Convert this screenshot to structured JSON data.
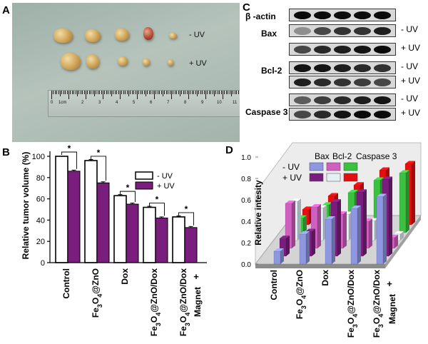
{
  "panels": {
    "a": {
      "letter": "A",
      "row_labels": [
        "- UV",
        "+ UV"
      ],
      "ruler": {
        "unit": "1cm",
        "numbers": [
          "0",
          "2",
          "3",
          "4",
          "5",
          "6",
          "7",
          "8",
          "9",
          "10",
          "11"
        ]
      }
    },
    "b": {
      "letter": "B"
    },
    "c": {
      "letter": "C",
      "proteins": [
        "β -actin",
        "Bax",
        "Bcl-2",
        "Caspase 3"
      ],
      "uv_labels": [
        "- UV",
        "+ UV"
      ]
    },
    "d": {
      "letter": "D"
    }
  },
  "chart_data": [
    {
      "type": "bar",
      "title": "",
      "xlabel": "",
      "ylabel": "Relative tumor volume (%)",
      "ylim": [
        0,
        100
      ],
      "yticks": [
        "0",
        "20",
        "40",
        "60",
        "80",
        "100"
      ],
      "categories": [
        "Control",
        "Fe3O4@ZnO",
        "Dox",
        "Fe3O4@ZnO/Dox",
        "Fe3O4@ZnO/Dox + Magnet"
      ],
      "category_parts": [
        {
          "a": "Control",
          "b": "",
          "c": "",
          "d": "",
          "e": ""
        },
        {
          "a": "Fe",
          "b": "3",
          "c": "O",
          "d": "4",
          "e": "@ZnO"
        },
        {
          "a": "Dox",
          "b": "",
          "c": "",
          "d": "",
          "e": ""
        },
        {
          "a": "Fe",
          "b": "3",
          "c": "O",
          "d": "4",
          "e": "@ZnO/Dox"
        },
        {
          "a": "Fe",
          "b": "3",
          "c": "O",
          "d": "4",
          "e": "@ZnO/Dox"
        }
      ],
      "extra_label_plus": "+",
      "extra_label_word": "Magnet",
      "legend": [
        "- UV",
        "+ UV"
      ],
      "significance_mark": "*",
      "series": [
        {
          "name": "- UV",
          "color": "#ffffff",
          "values": [
            100,
            96,
            63,
            52,
            43
          ],
          "errors": [
            0,
            1,
            1,
            1,
            1
          ]
        },
        {
          "name": "+ UV",
          "color": "#7a1e7e",
          "values": [
            86,
            75,
            55,
            42,
            33
          ],
          "errors": [
            1,
            1,
            1,
            1,
            1
          ]
        }
      ]
    },
    {
      "type": "bar",
      "subtype": "3d-grouped-bar",
      "title": "",
      "xlabel": "",
      "ylabel": "Relative intesity",
      "ylim": [
        0,
        1.0
      ],
      "yticks": [
        "0.0",
        "0.2",
        "0.4",
        "0.6",
        "0.8",
        "1.0"
      ],
      "categories": [
        "Control",
        "Fe3O4@ZnO",
        "Dox",
        "Fe3O4@ZnO/Dox",
        "Fe3O4@ZnO/Dox + Magnet"
      ],
      "legend_columns": [
        "Bax",
        "Bcl-2",
        "Caspase 3"
      ],
      "legend_rows": [
        "- UV",
        "+ UV"
      ],
      "series": [
        {
          "name": "Bax - UV",
          "color": "#8f97e0",
          "values": [
            0.12,
            0.28,
            0.42,
            0.52,
            0.63
          ]
        },
        {
          "name": "Bax + UV",
          "color": "#7a1e7e",
          "values": [
            0.18,
            0.25,
            0.55,
            0.65,
            0.78
          ]
        },
        {
          "name": "Bcl-2 - UV",
          "color": "#d060c0",
          "values": [
            0.5,
            0.46,
            0.38,
            0.3,
            0.12
          ]
        },
        {
          "name": "Bcl-2 + UV",
          "color": "#e4f0f6",
          "values": [
            0.48,
            0.4,
            0.32,
            0.24,
            0.08
          ]
        },
        {
          "name": "Caspase 3 - UV",
          "color": "#3cc040",
          "values": [
            0.2,
            0.38,
            0.55,
            0.72,
            0.82
          ]
        },
        {
          "name": "Caspase 3 + UV",
          "color": "#e21010",
          "values": [
            0.24,
            0.45,
            0.62,
            0.85,
            0.95
          ]
        }
      ]
    }
  ]
}
